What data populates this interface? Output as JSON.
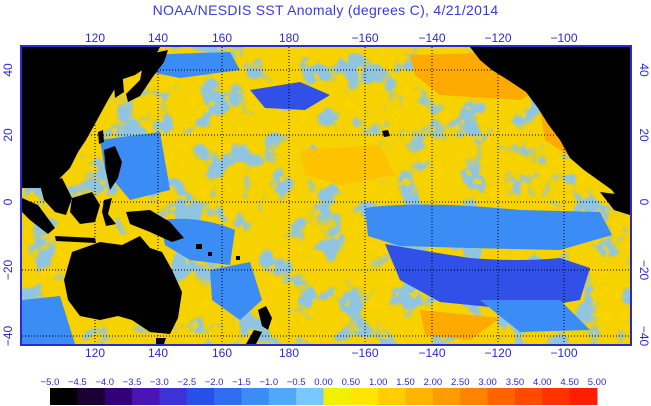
{
  "title": "NOAA/NESDIS SST Anomaly (degrees C), 4/21/2014",
  "axes": {
    "lon_ticks": [
      "120",
      "140",
      "160",
      "180",
      "−160",
      "−140",
      "−120",
      "−100"
    ],
    "lat_ticks": [
      "40",
      "20",
      "0",
      "−20",
      "−40"
    ]
  },
  "colorbar": {
    "labels": [
      "−5.0",
      "−4.5",
      "−4.0",
      "−3.5",
      "−3.0",
      "−2.5",
      "−2.0",
      "−1.5",
      "−1.0",
      "−0.5",
      "0.00",
      "0.50",
      "1.00",
      "1.50",
      "2.00",
      "2.50",
      "3.00",
      "3.50",
      "4.00",
      "4.50",
      "5.00"
    ],
    "colors": [
      "#000000",
      "#1a0033",
      "#33007a",
      "#4b14b4",
      "#3c32d6",
      "#2850e6",
      "#2f6cf0",
      "#3c8cf5",
      "#50a8fa",
      "#78c8ff",
      "#f0f000",
      "#ffe600",
      "#ffcd00",
      "#ffb400",
      "#ff9b00",
      "#ff8200",
      "#ff6400",
      "#ff4b00",
      "#ff3200",
      "#ff1e00"
    ]
  },
  "map_colors": {
    "land": "#000000",
    "neutral_ocean": "#f5d200",
    "warm_anomaly": "#ffaa00",
    "cool_anomaly": "#3c8cf5",
    "strong_cool_anomaly": "#3050e8",
    "frame": "#2a2ad0",
    "grid": "#000000"
  }
}
